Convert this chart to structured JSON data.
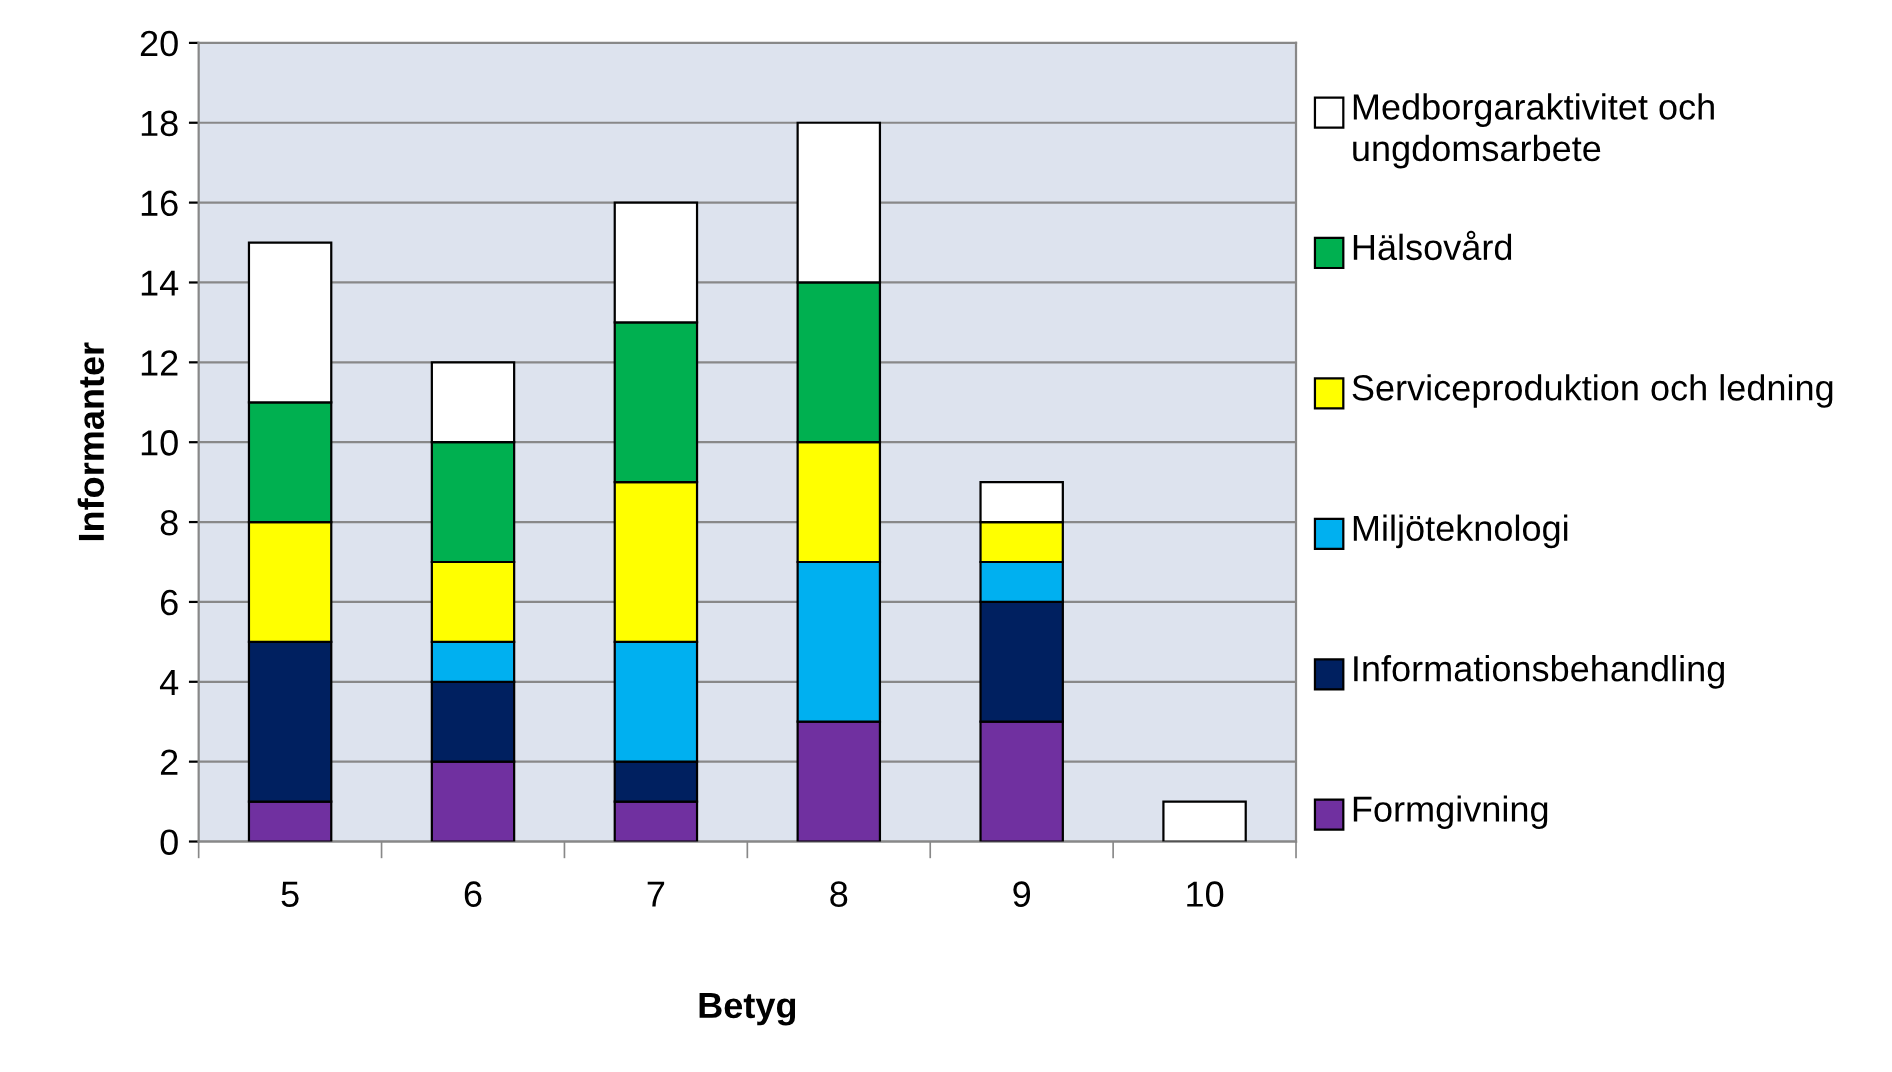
{
  "chart_data": {
    "type": "bar",
    "stacked": true,
    "xlabel": "Betyg",
    "ylabel": "Informanter",
    "categories": [
      "5",
      "6",
      "7",
      "8",
      "9",
      "10"
    ],
    "series": [
      {
        "name": "Formgivning",
        "color": "#7030a0",
        "values": [
          1,
          2,
          1,
          3,
          3,
          0
        ]
      },
      {
        "name": "Informationsbehandling",
        "color": "#002060",
        "values": [
          4,
          2,
          1,
          0,
          3,
          0
        ]
      },
      {
        "name": "Miljöteknologi",
        "color": "#00b0f0",
        "values": [
          0,
          1,
          3,
          4,
          1,
          0
        ]
      },
      {
        "name": "Serviceproduktion och ledning",
        "color": "#ffff00",
        "values": [
          3,
          2,
          4,
          3,
          1,
          0
        ]
      },
      {
        "name": "Hälsovård",
        "color": "#00b050",
        "values": [
          3,
          3,
          4,
          4,
          0,
          0
        ]
      },
      {
        "name": "Medborgaraktivitet och ungdomsarbete",
        "color": "#ffffff",
        "values": [
          4,
          2,
          3,
          4,
          1,
          1
        ]
      }
    ],
    "ylim": [
      0,
      20
    ],
    "yticks": [
      0,
      2,
      4,
      6,
      8,
      10,
      12,
      14,
      16,
      18,
      20
    ],
    "grid": "y",
    "legend": "right"
  }
}
